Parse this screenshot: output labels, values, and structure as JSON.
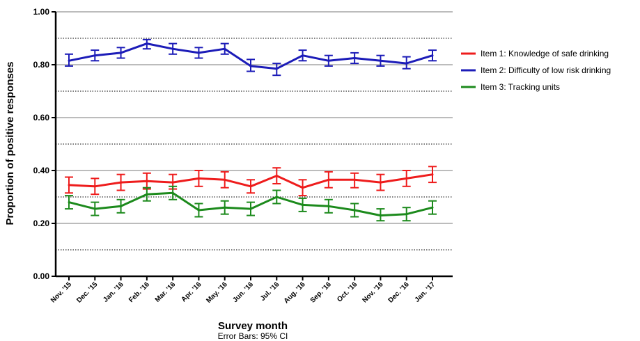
{
  "chart_data": {
    "type": "line",
    "x_tick_labels": [
      "Nov. '15",
      "Dec. '15",
      "Jan. '16",
      "Feb. '16",
      "Mar. '16",
      "Apr. '16",
      "May. '16",
      "Jun. '16",
      "Jul. '16",
      "Aug. '16",
      "Sep. '16",
      "Oct. '16",
      "Nov. '16",
      "Dec. '16",
      "Jan. '17"
    ],
    "xlabel": "Survey month",
    "note": "Error Bars: 95% CI",
    "ylabel": "Proportion of positive responses",
    "ylim": [
      0,
      1.0
    ],
    "y_ticks": [
      "0.00",
      "0.20",
      "0.40",
      "0.60",
      "0.80",
      "1.00"
    ],
    "y_tick_values": [
      0,
      0.2,
      0.4,
      0.6,
      0.8,
      1.0
    ],
    "major_grid": [
      0.2,
      0.4,
      0.6,
      0.8,
      1.0
    ],
    "minor_grid": [
      0.1,
      0.3,
      0.5,
      0.7,
      0.9
    ],
    "legend_position": "right",
    "series": [
      {
        "name": "Item 1: Knowledge of safe drinking",
        "color": "#ee1c1c",
        "values": [
          0.345,
          0.34,
          0.355,
          0.36,
          0.355,
          0.37,
          0.365,
          0.34,
          0.38,
          0.335,
          0.365,
          0.365,
          0.355,
          0.37,
          0.385
        ],
        "ci_lower": [
          0.315,
          0.31,
          0.325,
          0.33,
          0.33,
          0.34,
          0.335,
          0.315,
          0.35,
          0.305,
          0.335,
          0.335,
          0.325,
          0.34,
          0.355
        ],
        "ci_upper": [
          0.375,
          0.37,
          0.385,
          0.39,
          0.385,
          0.4,
          0.395,
          0.365,
          0.41,
          0.365,
          0.395,
          0.39,
          0.385,
          0.4,
          0.415
        ]
      },
      {
        "name": "Item 2: Difficulty of low risk drinking",
        "color": "#1c1cb8",
        "values": [
          0.815,
          0.835,
          0.845,
          0.88,
          0.86,
          0.845,
          0.86,
          0.795,
          0.785,
          0.835,
          0.815,
          0.825,
          0.815,
          0.805,
          0.835
        ],
        "ci_lower": [
          0.795,
          0.815,
          0.825,
          0.86,
          0.84,
          0.825,
          0.84,
          0.775,
          0.76,
          0.815,
          0.795,
          0.805,
          0.795,
          0.785,
          0.815
        ],
        "ci_upper": [
          0.84,
          0.855,
          0.865,
          0.895,
          0.88,
          0.865,
          0.88,
          0.82,
          0.805,
          0.855,
          0.835,
          0.845,
          0.835,
          0.83,
          0.855
        ]
      },
      {
        "name": "Item 3: Tracking units",
        "color": "#1c8a1c",
        "values": [
          0.28,
          0.255,
          0.265,
          0.31,
          0.315,
          0.25,
          0.26,
          0.255,
          0.3,
          0.27,
          0.265,
          0.25,
          0.23,
          0.235,
          0.26
        ],
        "ci_lower": [
          0.255,
          0.23,
          0.24,
          0.285,
          0.29,
          0.225,
          0.235,
          0.23,
          0.275,
          0.245,
          0.24,
          0.225,
          0.21,
          0.21,
          0.235
        ],
        "ci_upper": [
          0.305,
          0.28,
          0.29,
          0.335,
          0.34,
          0.275,
          0.285,
          0.28,
          0.325,
          0.295,
          0.29,
          0.275,
          0.255,
          0.26,
          0.285
        ]
      }
    ]
  }
}
